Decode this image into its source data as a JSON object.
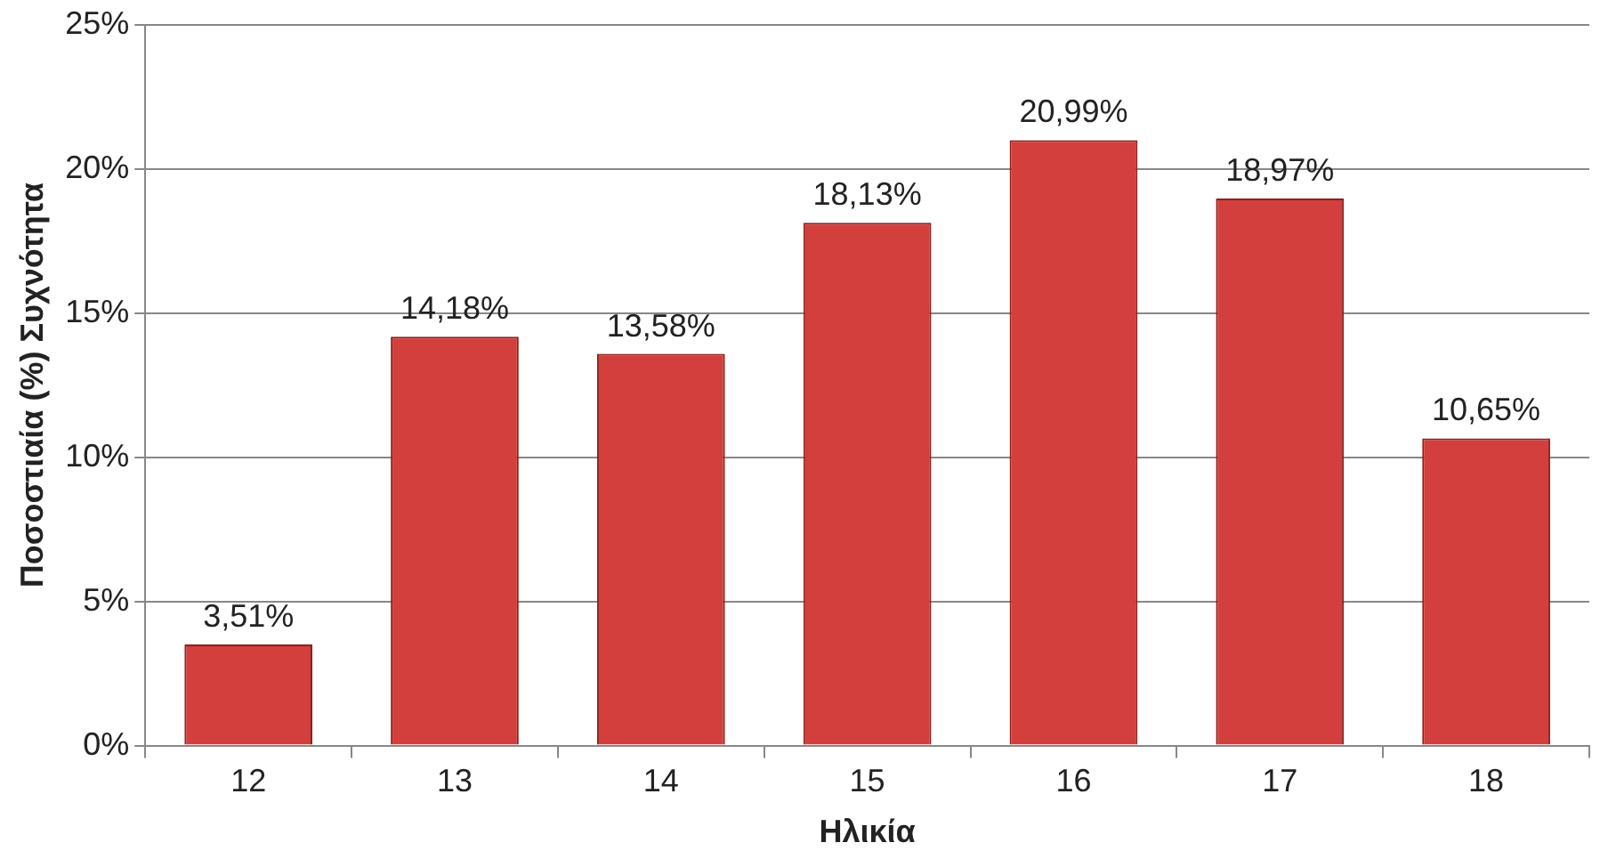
{
  "chart_data": {
    "type": "bar",
    "xlabel": "Ηλικία",
    "ylabel": "Ποσοστιαία (%) Συχνότητα",
    "categories": [
      "12",
      "13",
      "14",
      "15",
      "16",
      "17",
      "18"
    ],
    "values": [
      3.51,
      14.18,
      13.58,
      18.13,
      20.99,
      18.97,
      10.65
    ],
    "value_labels": [
      "3,51%",
      "14,18%",
      "13,58%",
      "18,13%",
      "20,99%",
      "18,97%",
      "10,65%"
    ],
    "color": "#d23f3c",
    "ylim": [
      0,
      25
    ],
    "yticks": [
      {
        "value": 0,
        "label": "0%"
      },
      {
        "value": 5,
        "label": "5%"
      },
      {
        "value": 10,
        "label": "10%"
      },
      {
        "value": 15,
        "label": "15%"
      },
      {
        "value": 20,
        "label": "20%"
      },
      {
        "value": 25,
        "label": "25%"
      }
    ],
    "grid": "y",
    "legend": false
  }
}
